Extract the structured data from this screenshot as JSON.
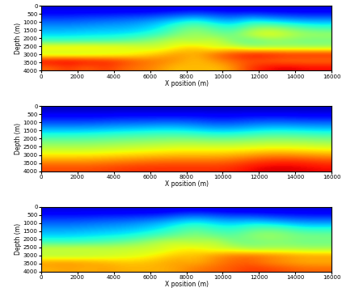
{
  "chart_data": [
    {
      "type": "heatmap",
      "x_label": "X position (m)",
      "y_label": "Depth (m)",
      "xlim": [
        0,
        16000
      ],
      "ylim": [
        4000,
        0
      ],
      "xticks": [
        0,
        2000,
        4000,
        6000,
        8000,
        10000,
        12000,
        14000,
        16000
      ],
      "yticks": [
        0,
        500,
        1000,
        1500,
        2000,
        2500,
        3000,
        3500,
        4000
      ],
      "clim": [
        0,
        1
      ],
      "cells": [
        [
          0.08,
          0.08,
          0.08,
          0.08,
          0.08,
          0.08,
          0.08,
          0.09,
          0.1,
          0.09,
          0.08,
          0.08,
          0.08,
          0.08,
          0.08,
          0.08
        ],
        [
          0.14,
          0.14,
          0.15,
          0.15,
          0.16,
          0.16,
          0.18,
          0.2,
          0.22,
          0.2,
          0.18,
          0.2,
          0.18,
          0.17,
          0.16,
          0.16
        ],
        [
          0.22,
          0.22,
          0.23,
          0.24,
          0.25,
          0.27,
          0.3,
          0.35,
          0.4,
          0.33,
          0.3,
          0.38,
          0.35,
          0.32,
          0.3,
          0.3
        ],
        [
          0.28,
          0.28,
          0.29,
          0.3,
          0.3,
          0.32,
          0.36,
          0.45,
          0.5,
          0.45,
          0.4,
          0.5,
          0.55,
          0.5,
          0.45,
          0.42
        ],
        [
          0.34,
          0.34,
          0.35,
          0.35,
          0.36,
          0.38,
          0.42,
          0.5,
          0.55,
          0.5,
          0.48,
          0.6,
          0.65,
          0.6,
          0.55,
          0.55
        ],
        [
          0.42,
          0.42,
          0.43,
          0.44,
          0.46,
          0.5,
          0.55,
          0.6,
          0.55,
          0.62,
          0.5,
          0.45,
          0.5,
          0.5,
          0.48,
          0.48
        ],
        [
          0.7,
          0.7,
          0.7,
          0.68,
          0.66,
          0.62,
          0.6,
          0.65,
          0.7,
          0.6,
          0.62,
          0.55,
          0.55,
          0.55,
          0.55,
          0.55
        ],
        [
          0.55,
          0.55,
          0.56,
          0.58,
          0.6,
          0.65,
          0.7,
          0.75,
          0.72,
          0.8,
          0.85,
          0.9,
          0.9,
          0.88,
          0.88,
          0.88
        ],
        [
          0.92,
          0.92,
          0.9,
          0.88,
          0.85,
          0.8,
          0.78,
          0.75,
          0.7,
          0.75,
          0.8,
          0.82,
          0.8,
          0.78,
          0.78,
          0.78
        ],
        [
          0.8,
          0.85,
          0.8,
          0.85,
          0.8,
          0.78,
          0.75,
          0.7,
          0.72,
          0.7,
          0.75,
          0.85,
          0.9,
          0.92,
          0.9,
          0.9
        ]
      ]
    },
    {
      "type": "heatmap",
      "x_label": "X position (m)",
      "y_label": "Depth (m)",
      "xlim": [
        0,
        16000
      ],
      "ylim": [
        4000,
        0
      ],
      "xticks": [
        0,
        2000,
        4000,
        6000,
        8000,
        10000,
        12000,
        14000,
        16000
      ],
      "yticks": [
        0,
        500,
        1000,
        1500,
        2000,
        2500,
        3000,
        3500,
        4000
      ],
      "clim": [
        0,
        1
      ],
      "cells": [
        [
          0.06,
          0.06,
          0.06,
          0.06,
          0.06,
          0.06,
          0.06,
          0.06,
          0.06,
          0.06,
          0.06,
          0.06,
          0.06,
          0.06,
          0.06,
          0.06
        ],
        [
          0.12,
          0.12,
          0.12,
          0.12,
          0.13,
          0.13,
          0.13,
          0.13,
          0.13,
          0.12,
          0.12,
          0.13,
          0.13,
          0.13,
          0.12,
          0.12
        ],
        [
          0.2,
          0.2,
          0.2,
          0.21,
          0.22,
          0.22,
          0.23,
          0.23,
          0.22,
          0.2,
          0.2,
          0.22,
          0.23,
          0.23,
          0.22,
          0.22
        ],
        [
          0.3,
          0.3,
          0.3,
          0.31,
          0.32,
          0.33,
          0.34,
          0.34,
          0.32,
          0.3,
          0.3,
          0.32,
          0.34,
          0.34,
          0.33,
          0.32
        ],
        [
          0.4,
          0.4,
          0.41,
          0.42,
          0.43,
          0.44,
          0.45,
          0.45,
          0.44,
          0.42,
          0.42,
          0.44,
          0.46,
          0.46,
          0.45,
          0.44
        ],
        [
          0.5,
          0.5,
          0.5,
          0.51,
          0.52,
          0.53,
          0.54,
          0.55,
          0.55,
          0.54,
          0.54,
          0.55,
          0.56,
          0.56,
          0.55,
          0.54
        ],
        [
          0.58,
          0.58,
          0.58,
          0.59,
          0.6,
          0.61,
          0.62,
          0.63,
          0.63,
          0.63,
          0.63,
          0.64,
          0.65,
          0.65,
          0.64,
          0.63
        ],
        [
          0.66,
          0.66,
          0.66,
          0.67,
          0.68,
          0.69,
          0.7,
          0.71,
          0.71,
          0.71,
          0.72,
          0.74,
          0.76,
          0.76,
          0.75,
          0.74
        ],
        [
          0.76,
          0.76,
          0.76,
          0.77,
          0.78,
          0.79,
          0.8,
          0.8,
          0.8,
          0.8,
          0.81,
          0.84,
          0.86,
          0.87,
          0.86,
          0.84
        ],
        [
          0.83,
          0.83,
          0.83,
          0.84,
          0.85,
          0.86,
          0.86,
          0.86,
          0.86,
          0.86,
          0.87,
          0.9,
          0.92,
          0.92,
          0.91,
          0.9
        ]
      ]
    },
    {
      "type": "heatmap",
      "x_label": "X position (m)",
      "y_label": "Depth (m)",
      "xlim": [
        0,
        16000
      ],
      "ylim": [
        4000,
        0
      ],
      "xticks": [
        0,
        2000,
        4000,
        6000,
        8000,
        10000,
        12000,
        14000,
        16000
      ],
      "yticks": [
        0,
        500,
        1000,
        1500,
        2000,
        2500,
        3000,
        3500,
        4000
      ],
      "clim": [
        0,
        1
      ],
      "cells": [
        [
          0.08,
          0.08,
          0.08,
          0.08,
          0.08,
          0.08,
          0.08,
          0.09,
          0.1,
          0.09,
          0.08,
          0.08,
          0.08,
          0.08,
          0.08,
          0.08
        ],
        [
          0.15,
          0.15,
          0.15,
          0.16,
          0.16,
          0.17,
          0.18,
          0.22,
          0.24,
          0.22,
          0.2,
          0.2,
          0.18,
          0.17,
          0.16,
          0.16
        ],
        [
          0.22,
          0.22,
          0.23,
          0.24,
          0.25,
          0.27,
          0.3,
          0.34,
          0.38,
          0.34,
          0.32,
          0.35,
          0.33,
          0.3,
          0.28,
          0.28
        ],
        [
          0.28,
          0.28,
          0.29,
          0.3,
          0.31,
          0.33,
          0.36,
          0.42,
          0.46,
          0.42,
          0.4,
          0.45,
          0.48,
          0.45,
          0.4,
          0.4
        ],
        [
          0.34,
          0.34,
          0.35,
          0.36,
          0.37,
          0.4,
          0.44,
          0.48,
          0.52,
          0.48,
          0.46,
          0.52,
          0.55,
          0.52,
          0.5,
          0.5
        ],
        [
          0.42,
          0.42,
          0.43,
          0.45,
          0.48,
          0.52,
          0.58,
          0.6,
          0.56,
          0.6,
          0.5,
          0.48,
          0.5,
          0.5,
          0.48,
          0.48
        ],
        [
          0.62,
          0.62,
          0.62,
          0.6,
          0.6,
          0.6,
          0.6,
          0.64,
          0.66,
          0.6,
          0.6,
          0.55,
          0.56,
          0.56,
          0.55,
          0.55
        ],
        [
          0.55,
          0.55,
          0.56,
          0.58,
          0.6,
          0.62,
          0.66,
          0.7,
          0.7,
          0.75,
          0.78,
          0.8,
          0.78,
          0.76,
          0.74,
          0.74
        ],
        [
          0.75,
          0.75,
          0.74,
          0.72,
          0.7,
          0.7,
          0.72,
          0.74,
          0.72,
          0.76,
          0.8,
          0.8,
          0.76,
          0.74,
          0.72,
          0.72
        ],
        [
          0.72,
          0.74,
          0.72,
          0.74,
          0.72,
          0.72,
          0.72,
          0.74,
          0.78,
          0.8,
          0.82,
          0.85,
          0.84,
          0.82,
          0.8,
          0.8
        ]
      ]
    }
  ]
}
